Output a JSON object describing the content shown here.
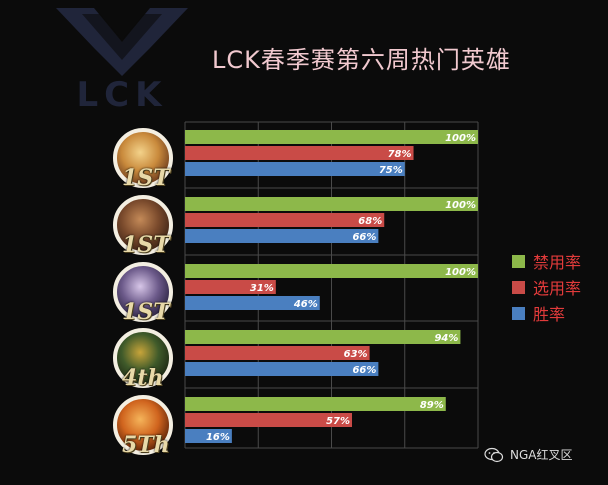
{
  "logo": {
    "text": "LCK"
  },
  "title": "LCK春季赛第六周热门英雄",
  "legend": [
    {
      "label": "禁用率",
      "color": "#8db84a"
    },
    {
      "label": "选用率",
      "color": "#c94b47"
    },
    {
      "label": "胜率",
      "color": "#4a7fc0"
    }
  ],
  "ranks": [
    "1ST",
    "1ST",
    "1ST",
    "4th",
    "5Th"
  ],
  "watermark": "NGA红叉区",
  "chart_data": {
    "type": "bar",
    "orientation": "horizontal",
    "title": "LCK春季赛第六周热门英雄",
    "categories": [
      "1ST",
      "1ST",
      "1ST",
      "4th",
      "5Th"
    ],
    "xlim": [
      0,
      100
    ],
    "grid": true,
    "legend_position": "right",
    "series": [
      {
        "name": "禁用率",
        "color": "#8db84a",
        "values": [
          100,
          100,
          100,
          94,
          89
        ],
        "labels": [
          "100%",
          "100%",
          "100%",
          "94%",
          "89%"
        ]
      },
      {
        "name": "选用率",
        "color": "#c94b47",
        "values": [
          78,
          68,
          31,
          63,
          57
        ],
        "labels": [
          "78%",
          "68%",
          "31%",
          "63%",
          "57%"
        ]
      },
      {
        "name": "胜率",
        "color": "#4a7fc0",
        "values": [
          75,
          66,
          46,
          66,
          16
        ],
        "labels": [
          "75%",
          "66%",
          "46%",
          "66%",
          "16%"
        ]
      }
    ]
  }
}
